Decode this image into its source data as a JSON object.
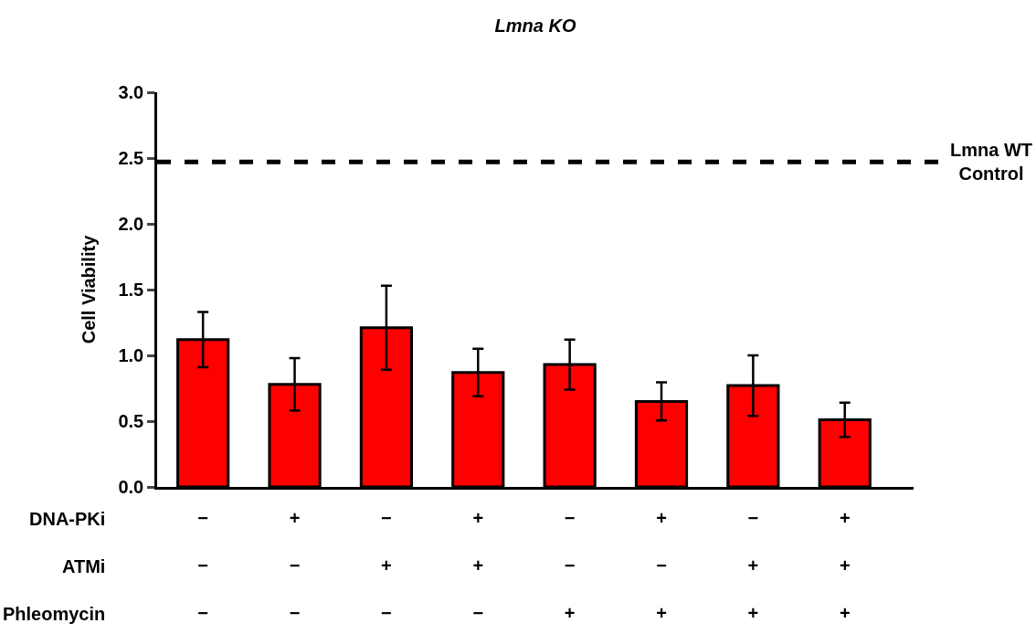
{
  "chart_data": {
    "type": "bar",
    "title": "Lmna KO",
    "ylabel": "Cell Viability",
    "categories": [
      "−\n−\n−",
      "+\n−\n−",
      "−\n+\n−",
      "+\n+\n−",
      "−\n−\n+",
      "+\n−\n+",
      "−\n+\n+",
      "+\n+\n+"
    ],
    "values": [
      1.12,
      0.78,
      1.21,
      0.87,
      0.93,
      0.65,
      0.77,
      0.51
    ],
    "errors": [
      0.21,
      0.2,
      0.32,
      0.18,
      0.19,
      0.145,
      0.23,
      0.13
    ],
    "color": "#ff0000",
    "ylim": [
      0,
      3
    ],
    "yticks": [
      {
        "value": 0,
        "label": "0.0"
      },
      {
        "value": 0.5,
        "label": "0.5"
      },
      {
        "value": 1,
        "label": "1.0"
      },
      {
        "value": 1.5,
        "label": "1.5"
      },
      {
        "value": 2,
        "label": "2.0"
      },
      {
        "value": 2.5,
        "label": "2.5"
      },
      {
        "value": 3,
        "label": "3.0"
      }
    ],
    "ref_lines": [
      {
        "axis": "y",
        "value": 2.47,
        "label": "Lmna WT\nControl",
        "color": "#000000",
        "line_style": "dashed"
      }
    ],
    "annotations": [
      "DNA-PKi",
      "ATMi",
      "Phleomycin"
    ]
  }
}
